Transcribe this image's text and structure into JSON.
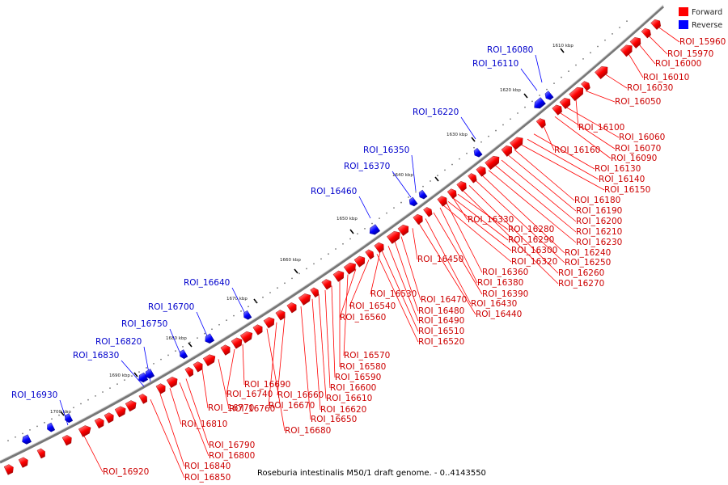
{
  "caption": "Roseburia intestinalis M50/1 draft genome. - 0..4143550",
  "colors": {
    "forward": "#ff0000",
    "reverse": "#0000ff",
    "backbone": "#888888"
  },
  "legend": [
    {
      "label": "Forward",
      "color": "#ff0000"
    },
    {
      "label": "Reverse",
      "color": "#0000ff"
    }
  ],
  "ticks": [
    "1610 kbp",
    "1620 kbp",
    "1630 kbp",
    "1640 kbp",
    "1650 kbp",
    "1660 kbp",
    "1670 kbp",
    "1680 kbp",
    "1690 kbp",
    "1700 kbp"
  ],
  "forward_labels": [
    "ROI_15960",
    "ROI_15970",
    "ROI_16000",
    "ROI_16010",
    "ROI_16030",
    "ROI_16050",
    "ROI_16100",
    "ROI_16060",
    "ROI_16070",
    "ROI_16090",
    "ROI_16160",
    "ROI_16130",
    "ROI_16140",
    "ROI_16150",
    "ROI_16180",
    "ROI_16190",
    "ROI_16200",
    "ROI_16210",
    "ROI_16230",
    "ROI_16240",
    "ROI_16250",
    "ROI_16260",
    "ROI_16270",
    "ROI_16280",
    "ROI_16290",
    "ROI_16300",
    "ROI_16320",
    "ROI_16330",
    "ROI_16360",
    "ROI_16380",
    "ROI_16390",
    "ROI_16430",
    "ROI_16440",
    "ROI_16450",
    "ROI_16470",
    "ROI_16480",
    "ROI_16490",
    "ROI_16510",
    "ROI_16520",
    "ROI_16530",
    "ROI_16540",
    "ROI_16560",
    "ROI_16570",
    "ROI_16580",
    "ROI_16590",
    "ROI_16600",
    "ROI_16610",
    "ROI_16620",
    "ROI_16650",
    "ROI_16660",
    "ROI_16670",
    "ROI_16680",
    "ROI_16690",
    "ROI_16740",
    "ROI_16760",
    "ROI_16770",
    "ROI_16790",
    "ROI_16800",
    "ROI_16810",
    "ROI_16840",
    "ROI_16850",
    "ROI_16920"
  ],
  "reverse_labels": [
    "ROI_16080",
    "ROI_16110",
    "ROI_16220",
    "ROI_16350",
    "ROI_16370",
    "ROI_16460",
    "ROI_16640",
    "ROI_16700",
    "ROI_16750",
    "ROI_16820",
    "ROI_16830",
    "ROI_16930"
  ]
}
